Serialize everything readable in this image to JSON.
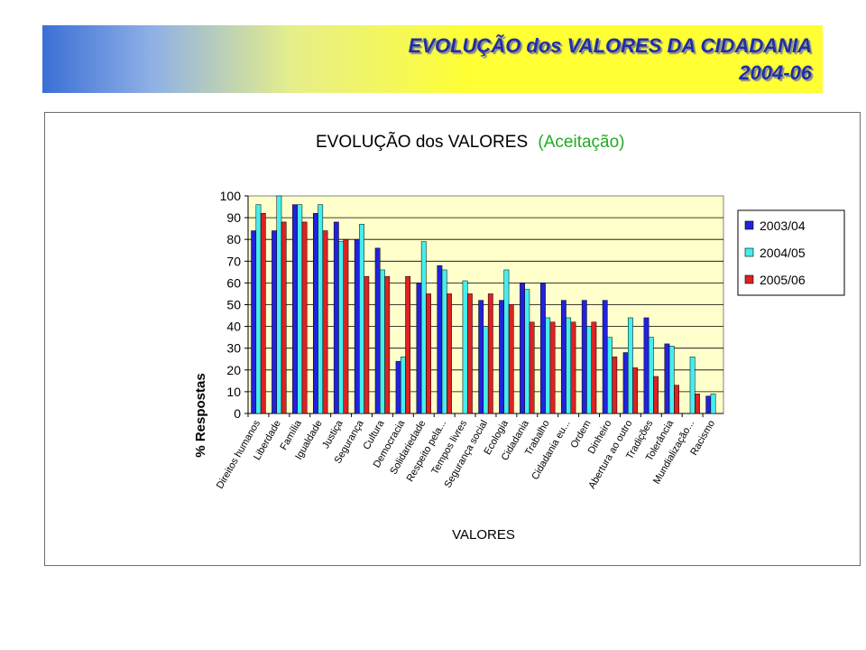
{
  "header": {
    "title_line1": "EVOLUÇÃO dos VALORES DA CIDADANIA",
    "title_line2": "2004-06"
  },
  "colors": {
    "banner_text": "#1f2fa8",
    "plot_background": "#ffffcc",
    "title_accent": "#22aa22"
  },
  "chart_data": {
    "type": "bar",
    "title": "EVOLUÇÃO dos VALORES",
    "title_suffix": "(Aceitação)",
    "xlabel": "VALORES",
    "ylabel": "% Respostas",
    "ylim": [
      0,
      100
    ],
    "yticks": [
      0,
      10,
      20,
      30,
      40,
      50,
      60,
      70,
      80,
      90,
      100
    ],
    "grid": true,
    "legend_position": "right",
    "categories": [
      "Direitos humanos",
      "Liberdade",
      "Família",
      "Igualdade",
      "Justiça",
      "Segurança",
      "Cultura",
      "Democracia",
      "Solidariedade",
      "Respeito pela...",
      "Tempos livres",
      "Segurança social",
      "Ecologia",
      "Cidadania",
      "Trabalho",
      "Cidadania eu...",
      "Ordem",
      "Dinheiro",
      "Abertura ao outro",
      "Tradições",
      "Tolerância",
      "Mundialização...",
      "Racismo"
    ],
    "series": [
      {
        "name": "2003/04",
        "color": "#2222dd",
        "values": [
          84,
          84,
          96,
          92,
          88,
          80,
          76,
          24,
          60,
          68,
          0,
          52,
          52,
          60,
          60,
          52,
          52,
          52,
          28,
          44,
          32,
          0,
          8
        ]
      },
      {
        "name": "2004/05",
        "color": "#44eeee",
        "values": [
          96,
          100,
          96,
          96,
          79,
          87,
          66,
          26,
          79,
          66,
          61,
          40,
          66,
          57,
          44,
          44,
          40,
          35,
          44,
          35,
          31,
          26,
          9
        ]
      },
      {
        "name": "2005/06",
        "color": "#dd2222",
        "values": [
          92,
          88,
          88,
          84,
          80,
          63,
          63,
          63,
          55,
          55,
          55,
          55,
          50,
          42,
          42,
          42,
          42,
          26,
          21,
          17,
          13,
          9,
          0
        ]
      }
    ]
  }
}
